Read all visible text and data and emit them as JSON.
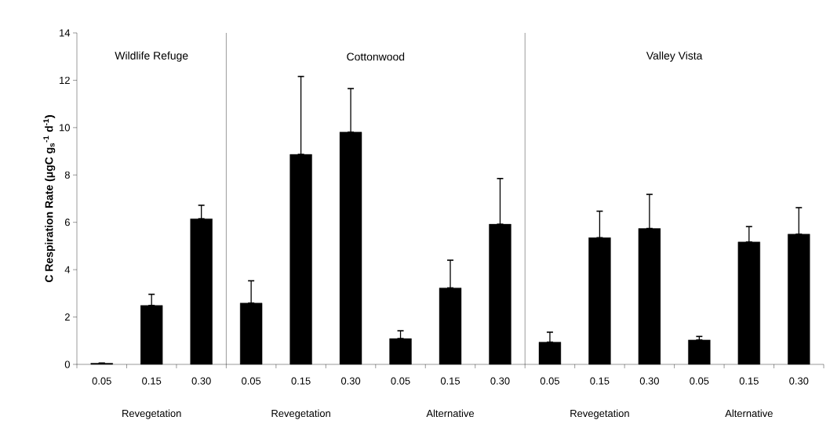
{
  "chart_data": {
    "type": "bar",
    "ylabel": "C Respiration Rate (μgC g$_{s}$$^{-1}$ d$^{-1}$)",
    "categories": [
      "0.05",
      "0.15",
      "0.30",
      "0.05",
      "0.15",
      "0.30",
      "0.05",
      "0.15",
      "0.30",
      "0.05",
      "0.15",
      "0.30",
      "0.05",
      "0.15",
      "0.30"
    ],
    "values": [
      0.05,
      2.49,
      6.15,
      2.59,
      8.87,
      9.81,
      1.09,
      3.23,
      5.92,
      0.94,
      5.35,
      5.74,
      1.03,
      5.17,
      5.5
    ],
    "errors": [
      null,
      [
        2.49,
        2.96
      ],
      [
        6.15,
        6.72
      ],
      [
        2.59,
        3.53
      ],
      [
        8.87,
        12.16
      ],
      [
        9.81,
        11.65
      ],
      [
        1.09,
        1.42
      ],
      [
        3.23,
        4.4
      ],
      [
        5.92,
        7.85
      ],
      [
        0.94,
        1.36
      ],
      [
        5.35,
        6.47
      ],
      [
        5.74,
        7.18
      ],
      [
        1.03,
        1.18
      ],
      [
        5.17,
        5.82
      ],
      [
        5.5,
        6.62
      ]
    ],
    "color": "#000000",
    "ylim": [
      0,
      14
    ],
    "yticks": [
      0,
      2,
      4,
      6,
      8,
      10,
      12,
      14
    ],
    "annotations": [
      "Wildlife Refuge",
      "Cottonwood",
      "Valley Vista",
      "Revegetation",
      "Revegetation",
      "Alternative",
      "Revegetation",
      "Alternative"
    ]
  }
}
